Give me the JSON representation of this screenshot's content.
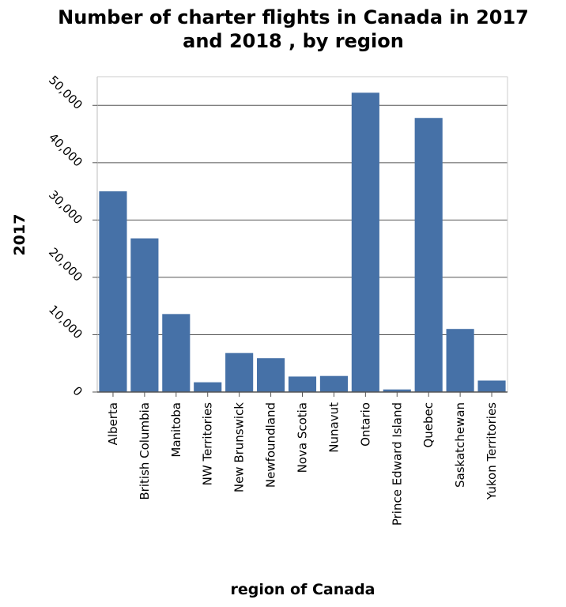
{
  "chart_data": {
    "type": "bar",
    "title_lines": [
      "Number of charter flights in Canada in 2017",
      "and 2018 , by region"
    ],
    "xlabel": "region of Canada",
    "ylabel": "2017",
    "categories": [
      "Alberta",
      "British Columbia",
      "Manitoba",
      "NW Territories",
      "New Brunswick",
      "Newfoundland",
      "Nova Scotia",
      "Nunavut",
      "Ontario",
      "Prince Edward Island",
      "Quebec",
      "Saskatchewan",
      "Yukon Territories"
    ],
    "values": [
      35000,
      26800,
      13600,
      1700,
      6800,
      5900,
      2700,
      2800,
      52200,
      450,
      47800,
      11000,
      2000
    ],
    "ylim": [
      0,
      55000
    ],
    "yticks": [
      0,
      10000,
      20000,
      30000,
      40000,
      50000
    ],
    "ytick_labels": [
      "0",
      "10,000",
      "20,000",
      "30,000",
      "40,000",
      "50,000"
    ],
    "grid": "horizontal",
    "bar_color": "#4671a7",
    "grid_color": "#555555"
  }
}
